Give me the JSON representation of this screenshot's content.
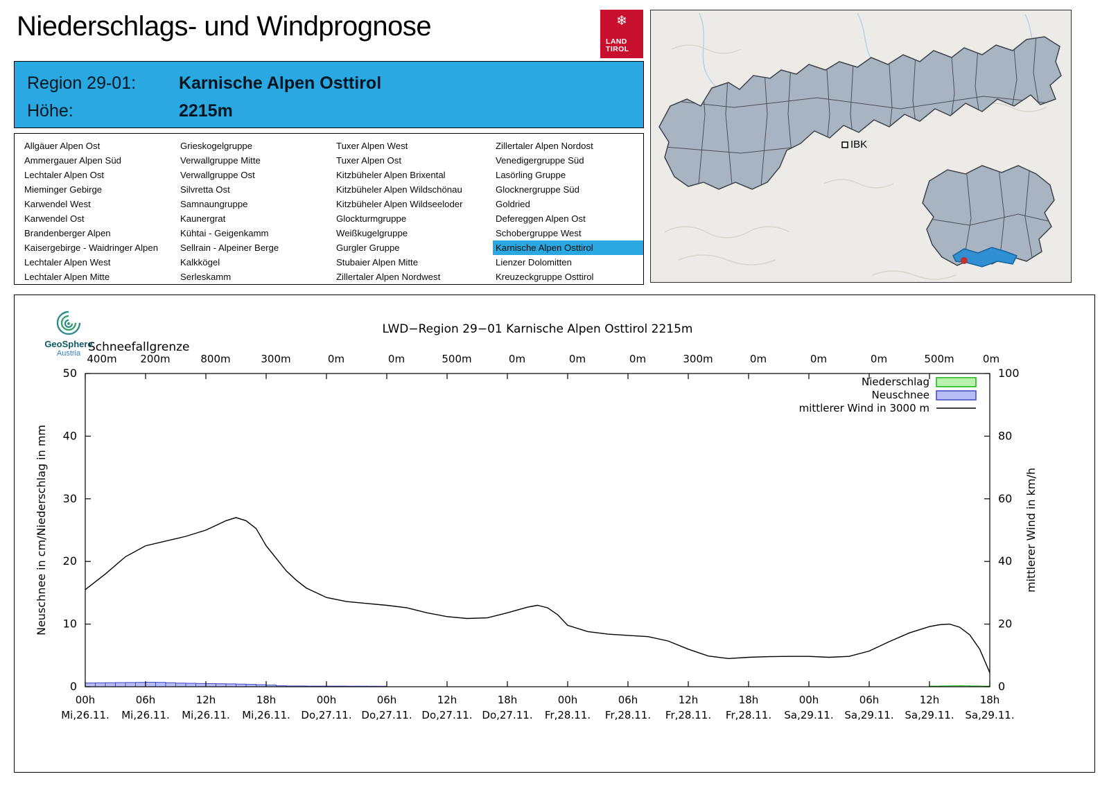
{
  "header": {
    "title": "Niederschlags- und Windprognose",
    "logo_line1": "LAND",
    "logo_line2": "TIROL"
  },
  "region_info": {
    "region_label": "Region 29-01:",
    "region_value": "Karnische Alpen Osttirol",
    "height_label": "Höhe:",
    "height_value": "2215m"
  },
  "region_list": {
    "selected": "Karnische Alpen Osttirol",
    "columns": [
      [
        "Allgäuer Alpen Ost",
        "Ammergauer Alpen Süd",
        "Lechtaler Alpen Ost",
        "Mieminger Gebirge",
        "Karwendel West",
        "Karwendel Ost",
        "Brandenberger Alpen",
        "Kaisergebirge - Waidringer Alpen",
        "Lechtaler Alpen West",
        "Lechtaler Alpen Mitte"
      ],
      [
        "Grieskogelgruppe",
        "Verwallgruppe Mitte",
        "Verwallgruppe Ost",
        "Silvretta Ost",
        "Samnaungruppe",
        "Kaunergrat",
        "Kühtai - Geigenkamm",
        "Sellrain - Alpeiner Berge",
        "Kalkkögel",
        "Serleskamm"
      ],
      [
        "Tuxer Alpen West",
        "Tuxer Alpen Ost",
        "Kitzbüheler Alpen Brixental",
        "Kitzbüheler Alpen Wildschönau",
        "Kitzbüheler Alpen Wildseeloder",
        "Glockturmgruppe",
        "Weißkugelgruppe",
        "Gurgler Gruppe",
        "Stubaier Alpen Mitte",
        "Zillertaler Alpen Nordwest"
      ],
      [
        "Zillertaler Alpen Nordost",
        "Venedigergruppe Süd",
        "Lasörling Gruppe",
        "Glocknergruppe Süd",
        "Goldried",
        "Defereggen Alpen Ost",
        "Schobergruppe West",
        "Karnische Alpen Osttirol",
        "Lienzer Dolomitten",
        "Kreuzeckgruppe Osttirol"
      ]
    ]
  },
  "map": {
    "city_label": "IBK"
  },
  "branding": {
    "geosphere": "GeoSphere",
    "austria": "Austria"
  },
  "chart_data": {
    "type": "line",
    "title": "LWD−Region 29−01 Karnische Alpen Osttirol 2215m",
    "snowline_label": "Schneefallgrenze",
    "snowline_values": [
      "400m",
      "200m",
      "800m",
      "300m",
      "0m",
      "0m",
      "500m",
      "0m",
      "0m",
      "0m",
      "300m",
      "0m",
      "0m",
      "0m",
      "500m",
      "0m"
    ],
    "ylabel_left": "Neuschnee in cm/Niederschlag in mm",
    "ylabel_right": "mittlerer Wind in km/h",
    "ylim_left": [
      0,
      50
    ],
    "ylim_right": [
      0,
      100
    ],
    "x_range_hours": [
      0,
      90
    ],
    "grid": false,
    "legend_position": "top-right",
    "x_ticks": [
      {
        "hour": 0,
        "time": "00h",
        "date": "Mi,26.11."
      },
      {
        "hour": 6,
        "time": "06h",
        "date": "Mi,26.11."
      },
      {
        "hour": 12,
        "time": "12h",
        "date": "Mi,26.11."
      },
      {
        "hour": 18,
        "time": "18h",
        "date": "Mi,26.11."
      },
      {
        "hour": 24,
        "time": "00h",
        "date": "Do,27.11."
      },
      {
        "hour": 30,
        "time": "06h",
        "date": "Do,27.11."
      },
      {
        "hour": 36,
        "time": "12h",
        "date": "Do,27.11."
      },
      {
        "hour": 42,
        "time": "18h",
        "date": "Do,27.11."
      },
      {
        "hour": 48,
        "time": "00h",
        "date": "Fr,28.11."
      },
      {
        "hour": 54,
        "time": "06h",
        "date": "Fr,28.11."
      },
      {
        "hour": 60,
        "time": "12h",
        "date": "Fr,28.11."
      },
      {
        "hour": 66,
        "time": "18h",
        "date": "Fr,28.11."
      },
      {
        "hour": 72,
        "time": "00h",
        "date": "Sa,29.11."
      },
      {
        "hour": 78,
        "time": "06h",
        "date": "Sa,29.11."
      },
      {
        "hour": 84,
        "time": "12h",
        "date": "Sa,29.11."
      },
      {
        "hour": 90,
        "time": "18h",
        "date": "Sa,29.11."
      }
    ],
    "colors": {
      "neuschnee_fill": "#b7bcf4",
      "neuschnee_stroke": "#3c46c8",
      "niederschlag_fill": "#b9f2ad",
      "niederschlag_stroke": "#17b117",
      "wind": "#000000"
    },
    "legend": [
      {
        "label": "Niederschlag",
        "type": "box",
        "fill": "#b9f2ad",
        "stroke": "#17b117"
      },
      {
        "label": "Neuschnee",
        "type": "box",
        "fill": "#b7bcf4",
        "stroke": "#3c46c8"
      },
      {
        "label": "mittlerer Wind in 3000 m",
        "type": "line",
        "stroke": "#000000"
      }
    ],
    "series": {
      "wind_kmh": [
        [
          0,
          31
        ],
        [
          2,
          36
        ],
        [
          4,
          41.5
        ],
        [
          6,
          45
        ],
        [
          8,
          46.5
        ],
        [
          10,
          48
        ],
        [
          12,
          50
        ],
        [
          13,
          51.5
        ],
        [
          14,
          53
        ],
        [
          15,
          54
        ],
        [
          16,
          53
        ],
        [
          17,
          50.5
        ],
        [
          18,
          45
        ],
        [
          19,
          41
        ],
        [
          20,
          37
        ],
        [
          21,
          34
        ],
        [
          22,
          31.5
        ],
        [
          23,
          30
        ],
        [
          24,
          28.5
        ],
        [
          26,
          27.2
        ],
        [
          28,
          26.6
        ],
        [
          30,
          26
        ],
        [
          32,
          25.2
        ],
        [
          34,
          23.6
        ],
        [
          36,
          22.4
        ],
        [
          38,
          21.8
        ],
        [
          40,
          22
        ],
        [
          42,
          23.6
        ],
        [
          44,
          25.4
        ],
        [
          45,
          26
        ],
        [
          46,
          25.2
        ],
        [
          47,
          23
        ],
        [
          48,
          19.6
        ],
        [
          50,
          17.6
        ],
        [
          52,
          16.8
        ],
        [
          54,
          16.4
        ],
        [
          56,
          16
        ],
        [
          58,
          14.6
        ],
        [
          60,
          12
        ],
        [
          62,
          9.8
        ],
        [
          64,
          9
        ],
        [
          66,
          9.4
        ],
        [
          68,
          9.6
        ],
        [
          70,
          9.7
        ],
        [
          72,
          9.7
        ],
        [
          74,
          9.4
        ],
        [
          76,
          9.7
        ],
        [
          78,
          11.4
        ],
        [
          80,
          14.4
        ],
        [
          82,
          17.2
        ],
        [
          84,
          19.2
        ],
        [
          85,
          19.8
        ],
        [
          86,
          20
        ],
        [
          87,
          19
        ],
        [
          88,
          16.6
        ],
        [
          89,
          12
        ],
        [
          90,
          4.5
        ]
      ],
      "neuschnee_cm": [
        [
          0,
          0.6
        ],
        [
          1,
          0.62
        ],
        [
          2,
          0.64
        ],
        [
          3,
          0.66
        ],
        [
          4,
          0.68
        ],
        [
          5,
          0.7
        ],
        [
          6,
          0.72
        ],
        [
          7,
          0.7
        ],
        [
          8,
          0.64
        ],
        [
          9,
          0.58
        ],
        [
          10,
          0.55
        ],
        [
          11,
          0.52
        ],
        [
          12,
          0.5
        ],
        [
          13,
          0.48
        ],
        [
          14,
          0.45
        ],
        [
          15,
          0.42
        ],
        [
          16,
          0.38
        ],
        [
          17,
          0.32
        ],
        [
          18,
          0.26
        ],
        [
          19,
          0.16
        ],
        [
          20,
          0.12
        ],
        [
          21,
          0.12
        ],
        [
          22,
          0.1
        ],
        [
          23,
          0.1
        ],
        [
          24,
          0.1
        ],
        [
          25,
          0.1
        ],
        [
          26,
          0.09
        ],
        [
          27,
          0.09
        ],
        [
          28,
          0.08
        ],
        [
          29,
          0.08
        ]
      ],
      "niederschlag_mm": [
        [
          84,
          0.1
        ],
        [
          85,
          0.12
        ],
        [
          86,
          0.14
        ],
        [
          87,
          0.14
        ],
        [
          88,
          0.12
        ],
        [
          89,
          0.1
        ]
      ]
    }
  }
}
